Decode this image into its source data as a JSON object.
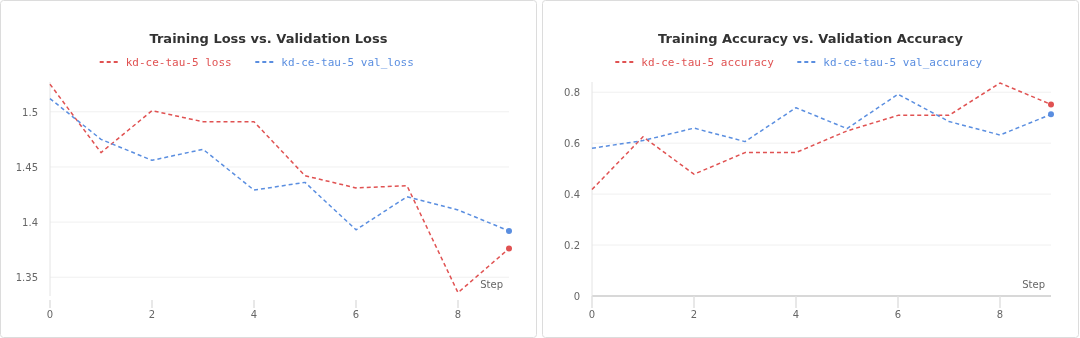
{
  "chart_data": [
    {
      "type": "line",
      "title": "Training Loss vs. Validation Loss",
      "xlabel": "Step",
      "x": [
        0,
        1,
        2,
        3,
        4,
        5,
        6,
        7,
        8,
        9
      ],
      "xlim": [
        0,
        9
      ],
      "xticks": [
        0,
        2,
        4,
        6,
        8
      ],
      "ylim": [
        1.333,
        1.527
      ],
      "yticks": [
        1.35,
        1.4,
        1.45,
        1.5
      ],
      "grid": "y",
      "legend": "top",
      "line_style": "dashed",
      "marker": "none",
      "series": [
        {
          "name": "kd-ce-tau-5 loss",
          "color": "#e05252",
          "values": [
            1.525,
            1.463,
            1.501,
            1.491,
            1.491,
            1.442,
            1.431,
            1.433,
            1.336,
            1.376
          ]
        },
        {
          "name": "kd-ce-tau-5 val_loss",
          "color": "#5a8ee0",
          "values": [
            1.512,
            1.475,
            1.456,
            1.466,
            1.429,
            1.436,
            1.393,
            1.423,
            1.411,
            1.392
          ]
        }
      ]
    },
    {
      "type": "line",
      "title": "Training Accuracy vs. Validation Accuracy",
      "xlabel": "Step",
      "x": [
        0,
        1,
        2,
        3,
        4,
        5,
        6,
        7,
        8,
        9
      ],
      "xlim": [
        0,
        9
      ],
      "xticks": [
        0,
        2,
        4,
        6,
        8
      ],
      "ylim": [
        0,
        0.84
      ],
      "yticks": [
        0,
        0.2,
        0.4,
        0.6,
        0.8
      ],
      "grid": "y",
      "legend": "top",
      "line_style": "dashed",
      "marker": "none",
      "series": [
        {
          "name": "kd-ce-tau-5 accuracy",
          "color": "#e05252",
          "values": [
            0.418,
            0.625,
            0.478,
            0.563,
            0.563,
            0.648,
            0.709,
            0.709,
            0.836,
            0.752
          ]
        },
        {
          "name": "kd-ce-tau-5 val_accuracy",
          "color": "#5a8ee0",
          "values": [
            0.58,
            0.61,
            0.659,
            0.606,
            0.739,
            0.657,
            0.792,
            0.685,
            0.632,
            0.713
          ]
        }
      ]
    }
  ]
}
